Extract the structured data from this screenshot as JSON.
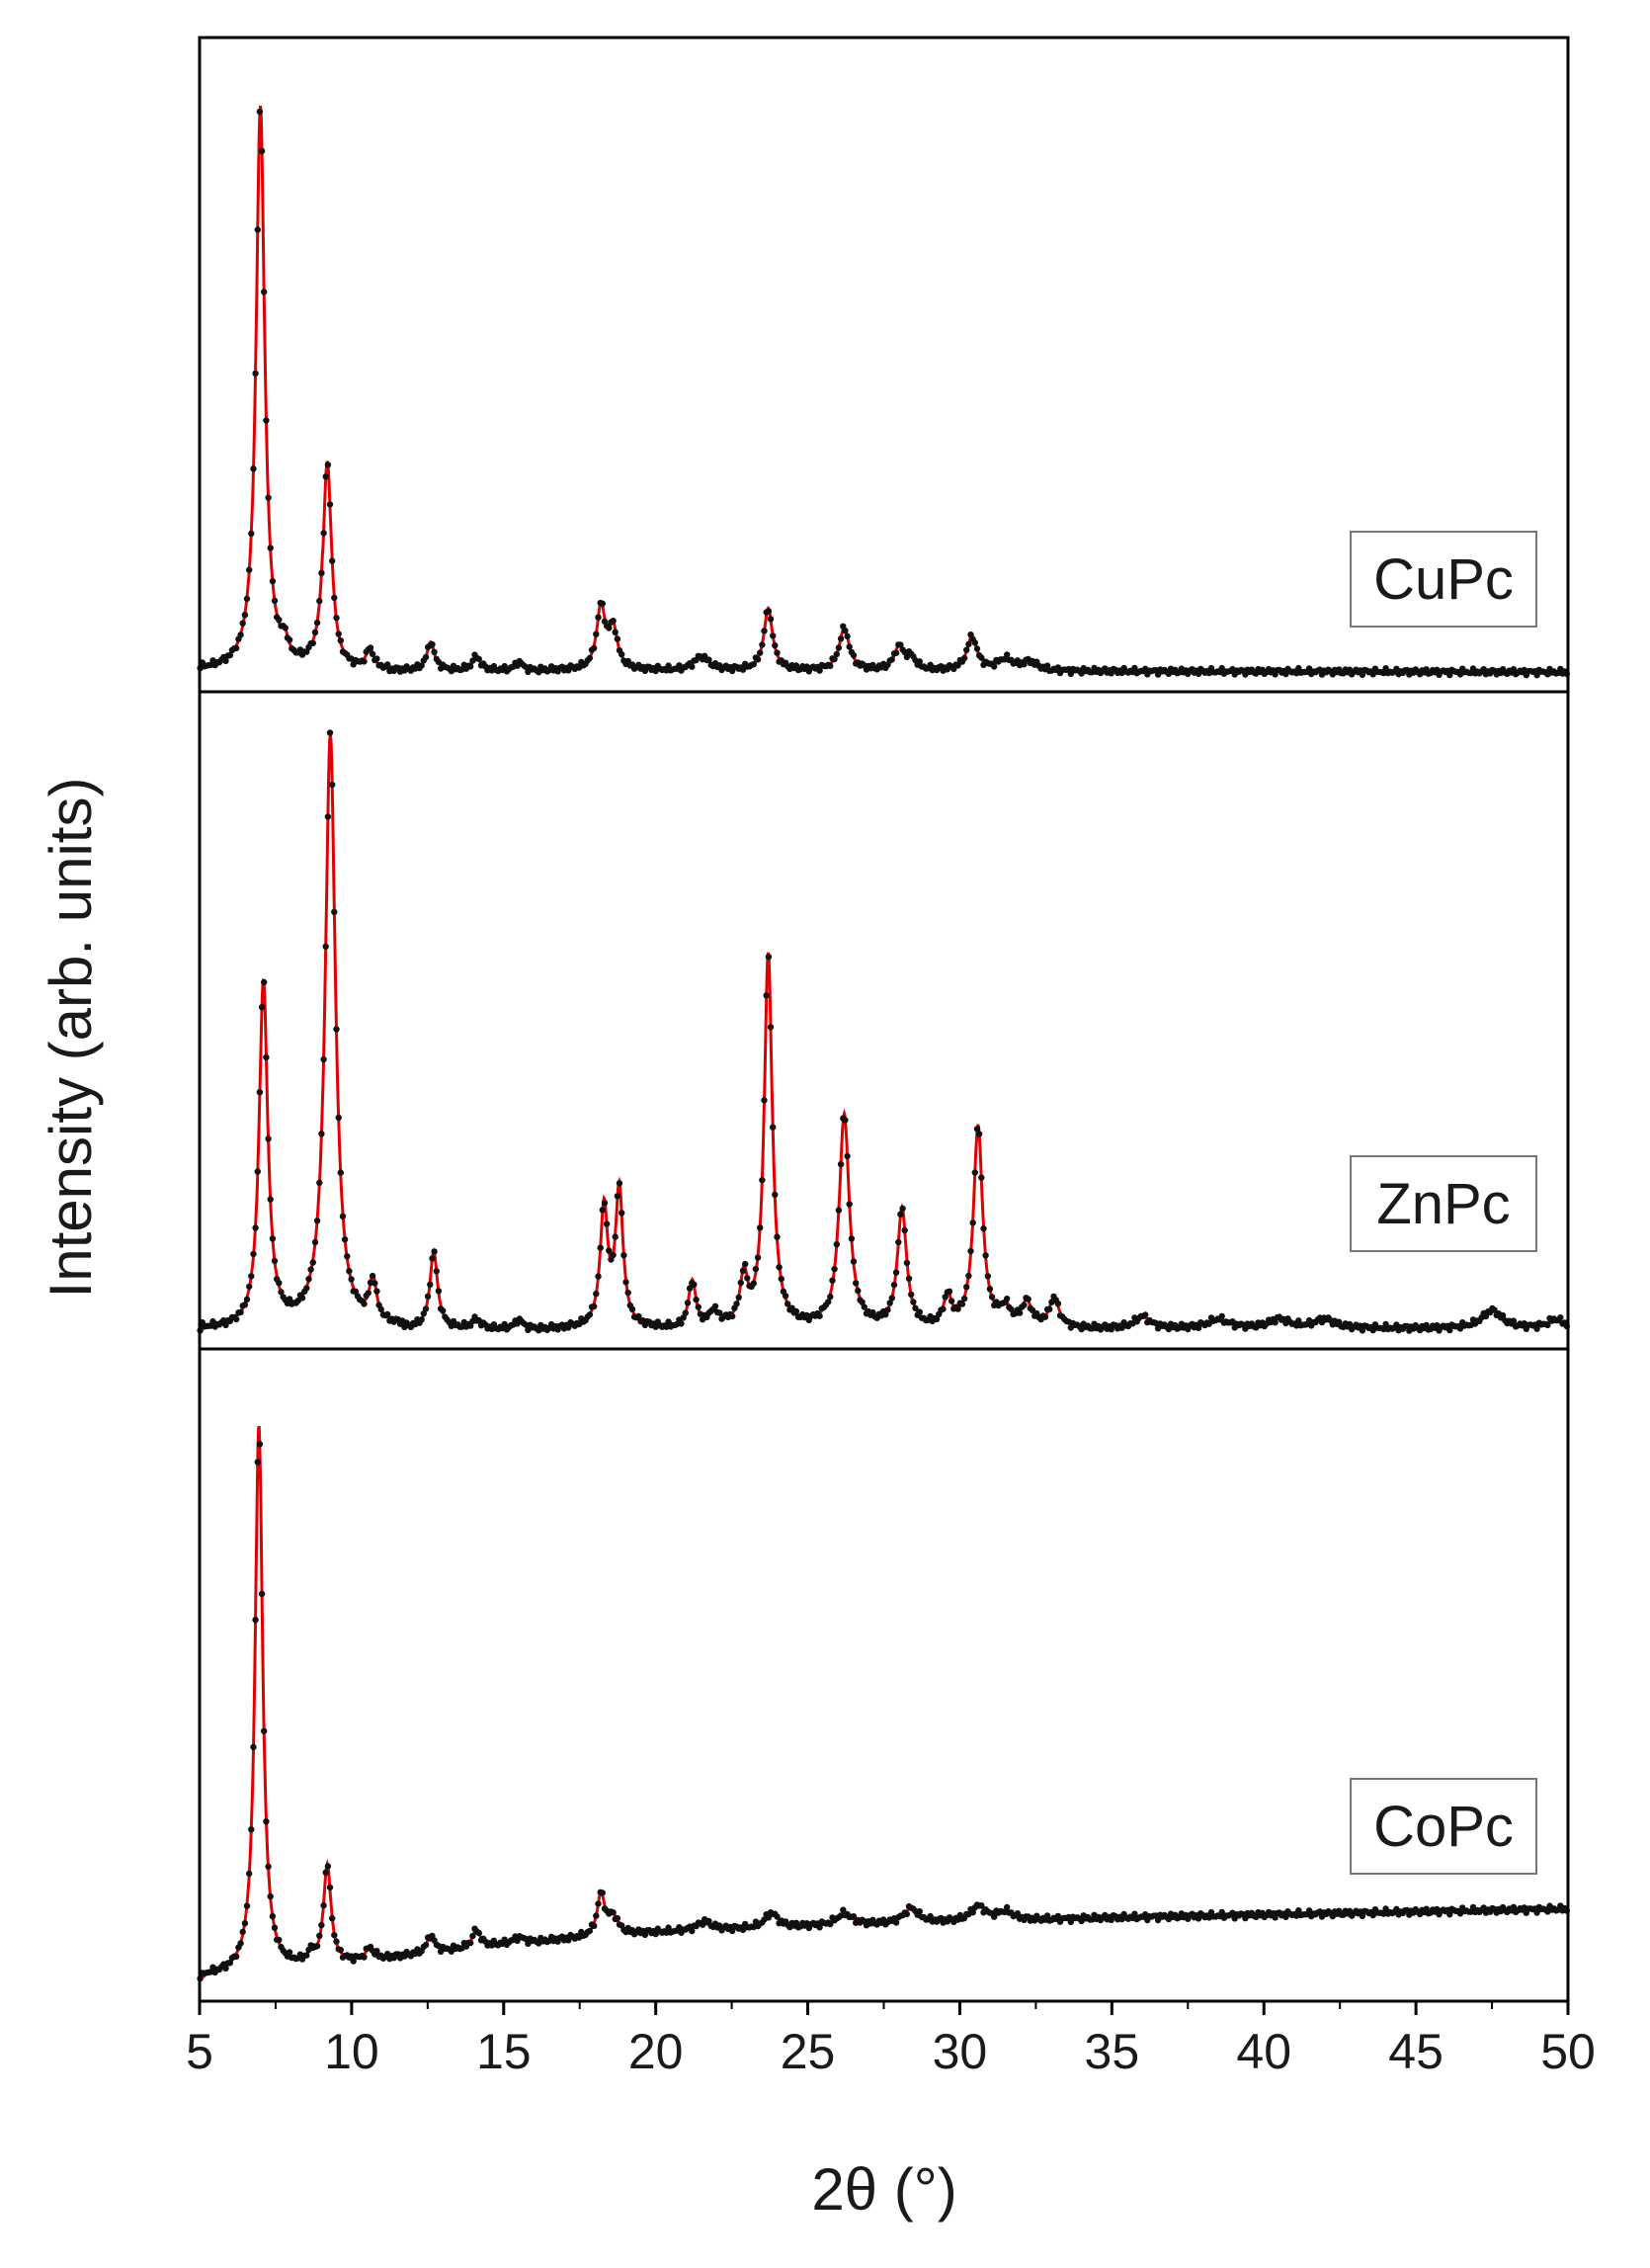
{
  "chart_data": {
    "type": "line",
    "xlabel": "2θ (°)",
    "ylabel": "Intensity (arb. units)",
    "xlim": [
      5,
      50
    ],
    "x_ticks": [
      5,
      10,
      15,
      20,
      25,
      30,
      35,
      40,
      45,
      50
    ],
    "y_ticks": "none",
    "grid": false,
    "colors": {
      "fit": "#e00000",
      "observed": "#111111",
      "frame": "#000000",
      "label_border": "#777777"
    },
    "panels": [
      {
        "label": "CuPc",
        "label_position": "right",
        "ylim": [
          0,
          110
        ],
        "baseline": {
          "x": [
            5,
            20,
            50
          ],
          "y": [
            1.0,
            1.0,
            0.7
          ]
        },
        "peaks": [
          {
            "x": 7.0,
            "h": 100,
            "w": 0.17
          },
          {
            "x": 7.8,
            "h": 3,
            "w": 0.12
          },
          {
            "x": 9.2,
            "h": 37,
            "w": 0.17
          },
          {
            "x": 10.6,
            "h": 3.5,
            "w": 0.15
          },
          {
            "x": 12.6,
            "h": 5,
            "w": 0.15
          },
          {
            "x": 14.1,
            "h": 2.5,
            "w": 0.15
          },
          {
            "x": 15.5,
            "h": 1.5,
            "w": 0.15
          },
          {
            "x": 18.2,
            "h": 11,
            "w": 0.17
          },
          {
            "x": 18.6,
            "h": 7,
            "w": 0.17
          },
          {
            "x": 21.5,
            "h": 2.5,
            "w": 0.3
          },
          {
            "x": 23.7,
            "h": 11,
            "w": 0.17
          },
          {
            "x": 26.2,
            "h": 7.5,
            "w": 0.2
          },
          {
            "x": 28.0,
            "h": 4,
            "w": 0.2
          },
          {
            "x": 28.4,
            "h": 2,
            "w": 0.2
          },
          {
            "x": 30.4,
            "h": 6,
            "w": 0.2
          },
          {
            "x": 31.5,
            "h": 2,
            "w": 0.3
          },
          {
            "x": 32.3,
            "h": 1.5,
            "w": 0.3
          }
        ]
      },
      {
        "label": "ZnPc",
        "label_position": "right",
        "ylim": [
          0,
          105
        ],
        "baseline": {
          "x": [
            5,
            20,
            50
          ],
          "y": [
            0.8,
            0.8,
            0.8
          ]
        },
        "peaks": [
          {
            "x": 7.1,
            "h": 58,
            "w": 0.17
          },
          {
            "x": 9.3,
            "h": 100,
            "w": 0.2
          },
          {
            "x": 10.7,
            "h": 7,
            "w": 0.15
          },
          {
            "x": 12.7,
            "h": 13,
            "w": 0.15
          },
          {
            "x": 14.1,
            "h": 1.5,
            "w": 0.15
          },
          {
            "x": 15.5,
            "h": 1.5,
            "w": 0.15
          },
          {
            "x": 18.3,
            "h": 20,
            "w": 0.15
          },
          {
            "x": 18.8,
            "h": 23,
            "w": 0.15
          },
          {
            "x": 21.2,
            "h": 8,
            "w": 0.15
          },
          {
            "x": 21.9,
            "h": 2.5,
            "w": 0.2
          },
          {
            "x": 22.9,
            "h": 8,
            "w": 0.15
          },
          {
            "x": 23.7,
            "h": 63,
            "w": 0.16
          },
          {
            "x": 26.2,
            "h": 36,
            "w": 0.2
          },
          {
            "x": 28.1,
            "h": 20,
            "w": 0.18
          },
          {
            "x": 29.6,
            "h": 5,
            "w": 0.15
          },
          {
            "x": 30.6,
            "h": 34,
            "w": 0.18
          },
          {
            "x": 31.5,
            "h": 3,
            "w": 0.2
          },
          {
            "x": 32.2,
            "h": 4,
            "w": 0.2
          },
          {
            "x": 33.1,
            "h": 5,
            "w": 0.2
          },
          {
            "x": 36.0,
            "h": 2,
            "w": 0.3
          },
          {
            "x": 38.5,
            "h": 1.5,
            "w": 0.4
          },
          {
            "x": 40.5,
            "h": 1.5,
            "w": 0.4
          },
          {
            "x": 42.0,
            "h": 1.5,
            "w": 0.4
          },
          {
            "x": 47.5,
            "h": 3,
            "w": 0.4
          },
          {
            "x": 49.6,
            "h": 1.5,
            "w": 0.3
          }
        ]
      },
      {
        "label": "CoPc",
        "label_position": "right",
        "ylim": [
          0,
          105
        ],
        "baseline": {
          "x": [
            5,
            6.5,
            10,
            15,
            20,
            25,
            35,
            50
          ],
          "y": [
            1.5,
            1.8,
            4.0,
            7.0,
            9.0,
            10.0,
            11.5,
            13.0
          ]
        },
        "peaks": [
          {
            "x": 6.95,
            "h": 93,
            "w": 0.15
          },
          {
            "x": 8.7,
            "h": 1.5,
            "w": 0.15
          },
          {
            "x": 9.2,
            "h": 17,
            "w": 0.15
          },
          {
            "x": 10.6,
            "h": 2,
            "w": 0.15
          },
          {
            "x": 12.6,
            "h": 3,
            "w": 0.15
          },
          {
            "x": 14.1,
            "h": 3,
            "w": 0.15
          },
          {
            "x": 15.5,
            "h": 1,
            "w": 0.2
          },
          {
            "x": 18.2,
            "h": 7,
            "w": 0.15
          },
          {
            "x": 18.6,
            "h": 3,
            "w": 0.2
          },
          {
            "x": 21.6,
            "h": 1.5,
            "w": 0.3
          },
          {
            "x": 23.8,
            "h": 2.5,
            "w": 0.25
          },
          {
            "x": 26.2,
            "h": 2,
            "w": 0.3
          },
          {
            "x": 28.4,
            "h": 2.5,
            "w": 0.3
          },
          {
            "x": 30.6,
            "h": 2.5,
            "w": 0.3
          },
          {
            "x": 31.5,
            "h": 1.5,
            "w": 0.3
          }
        ]
      }
    ]
  }
}
